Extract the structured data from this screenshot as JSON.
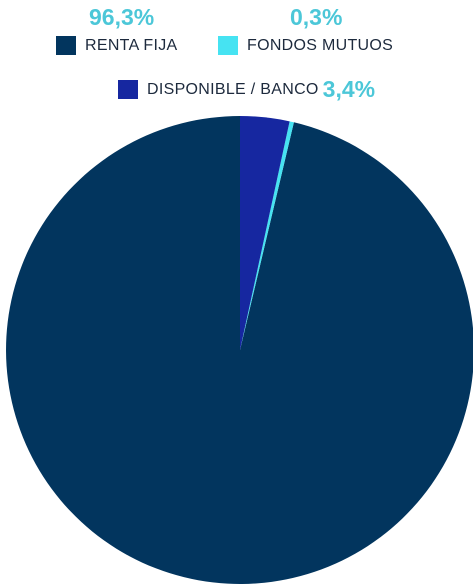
{
  "chart_data": {
    "type": "pie",
    "slices": [
      {
        "label": "RENTA FIJA",
        "value": 96.3,
        "value_label": "96,3%",
        "color": "#02355e"
      },
      {
        "label": "FONDOS MUTUOS",
        "value": 0.3,
        "value_label": "0,3%",
        "color": "#46e3f2"
      },
      {
        "label": "DISPONIBLE / BANCO",
        "value": 3.4,
        "value_label": "3,4%",
        "color": "#1627a0"
      }
    ],
    "value_label_color": "#4cc7d8",
    "start_angle": "top",
    "direction": "counter-clockwise"
  }
}
